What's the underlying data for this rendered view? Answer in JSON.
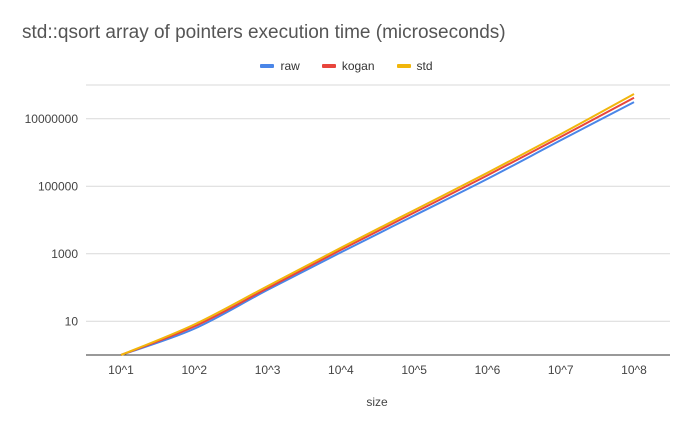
{
  "chart_data": {
    "type": "line",
    "title": "std::qsort array of pointers execution time (microseconds)",
    "xlabel": "size",
    "ylabel": "",
    "categories": [
      "10^1",
      "10^2",
      "10^3",
      "10^4",
      "10^5",
      "10^6",
      "10^7",
      "10^8"
    ],
    "y_scale": "log",
    "ylim": [
      1,
      100000000
    ],
    "y_ticks": [
      "10",
      "1000",
      "100000",
      "10000000"
    ],
    "grid": true,
    "legend_position": "top",
    "series": [
      {
        "name": "raw",
        "color": "#4a86e8",
        "values": [
          1,
          6,
          85,
          1100,
          13500,
          165000,
          2300000,
          31000000
        ]
      },
      {
        "name": "kogan",
        "color": "#e8453c",
        "values": [
          1,
          7,
          95,
          1300,
          16500,
          210000,
          2900000,
          42000000
        ]
      },
      {
        "name": "std",
        "color": "#f1b60b",
        "values": [
          1,
          8,
          110,
          1500,
          19500,
          250000,
          3500000,
          54000000
        ]
      }
    ]
  }
}
